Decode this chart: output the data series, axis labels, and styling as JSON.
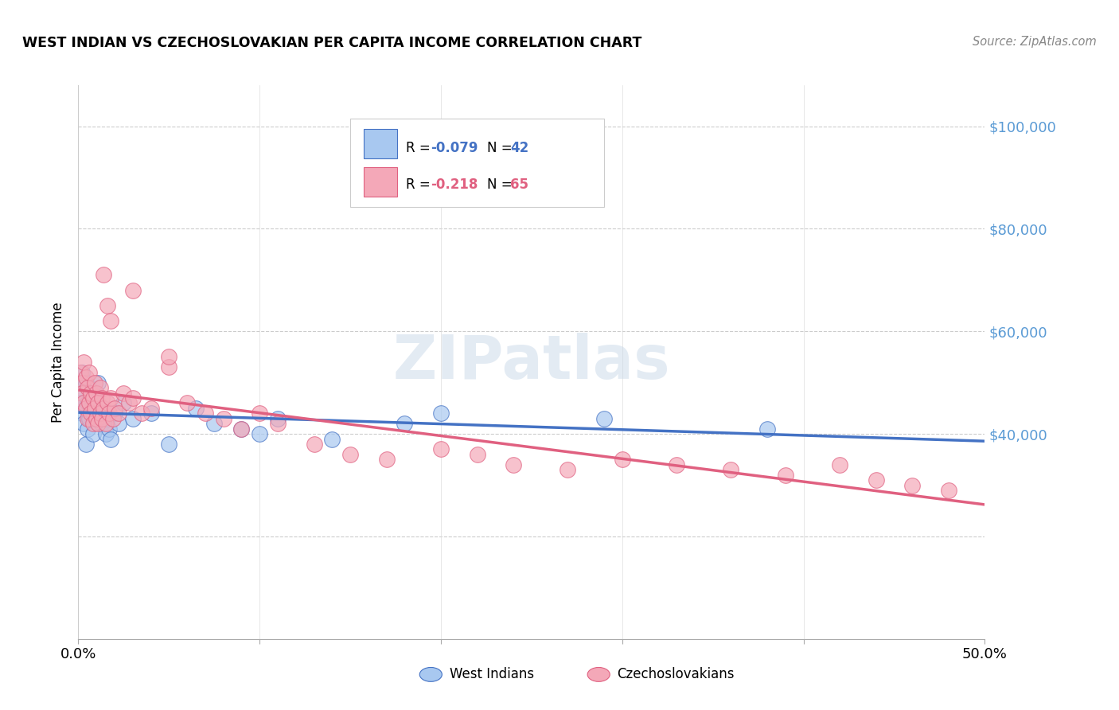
{
  "title": "WEST INDIAN VS CZECHOSLOVAKIAN PER CAPITA INCOME CORRELATION CHART",
  "source": "Source: ZipAtlas.com",
  "ylabel": "Per Capita Income",
  "legend_label_1": "West Indians",
  "legend_label_2": "Czechoslovakians",
  "color_blue": "#A8C8F0",
  "color_pink": "#F4A8B8",
  "color_blue_line": "#4472C4",
  "color_pink_line": "#E06080",
  "color_ytick_right": "#5B9BD5",
  "xmin": 0.0,
  "xmax": 0.5,
  "ymin": 0,
  "ymax": 108000,
  "wi_x": [
    0.001,
    0.002,
    0.002,
    0.003,
    0.003,
    0.004,
    0.004,
    0.005,
    0.005,
    0.006,
    0.006,
    0.007,
    0.007,
    0.008,
    0.008,
    0.009,
    0.01,
    0.01,
    0.011,
    0.012,
    0.013,
    0.014,
    0.015,
    0.016,
    0.017,
    0.018,
    0.02,
    0.022,
    0.025,
    0.03,
    0.04,
    0.05,
    0.065,
    0.075,
    0.09,
    0.1,
    0.11,
    0.14,
    0.18,
    0.2,
    0.29,
    0.38
  ],
  "wi_y": [
    46000,
    52000,
    44000,
    48000,
    42000,
    50000,
    38000,
    46000,
    41000,
    49000,
    43000,
    47000,
    45000,
    44000,
    40000,
    48000,
    46000,
    43000,
    50000,
    45000,
    42000,
    44000,
    40000,
    43000,
    41000,
    39000,
    44000,
    42000,
    46000,
    43000,
    44000,
    38000,
    45000,
    42000,
    41000,
    40000,
    43000,
    39000,
    42000,
    44000,
    43000,
    41000
  ],
  "cz_x": [
    0.001,
    0.002,
    0.002,
    0.003,
    0.003,
    0.004,
    0.004,
    0.005,
    0.005,
    0.006,
    0.006,
    0.007,
    0.007,
    0.008,
    0.008,
    0.009,
    0.009,
    0.01,
    0.01,
    0.011,
    0.011,
    0.012,
    0.012,
    0.013,
    0.013,
    0.014,
    0.015,
    0.016,
    0.017,
    0.018,
    0.019,
    0.02,
    0.022,
    0.025,
    0.028,
    0.03,
    0.035,
    0.04,
    0.05,
    0.06,
    0.07,
    0.08,
    0.09,
    0.1,
    0.11,
    0.13,
    0.15,
    0.17,
    0.2,
    0.22,
    0.24,
    0.27,
    0.3,
    0.33,
    0.36,
    0.39,
    0.42,
    0.44,
    0.46,
    0.48,
    0.014,
    0.016,
    0.018,
    0.03,
    0.05
  ],
  "cz_y": [
    52000,
    50000,
    48000,
    54000,
    46000,
    51000,
    45000,
    49000,
    43000,
    52000,
    46000,
    48000,
    44000,
    47000,
    42000,
    50000,
    45000,
    48000,
    43000,
    46000,
    42000,
    49000,
    44000,
    47000,
    43000,
    45000,
    42000,
    46000,
    44000,
    47000,
    43000,
    45000,
    44000,
    48000,
    46000,
    47000,
    44000,
    45000,
    53000,
    46000,
    44000,
    43000,
    41000,
    44000,
    42000,
    38000,
    36000,
    35000,
    37000,
    36000,
    34000,
    33000,
    35000,
    34000,
    33000,
    32000,
    34000,
    31000,
    30000,
    29000,
    71000,
    65000,
    62000,
    68000,
    55000
  ]
}
